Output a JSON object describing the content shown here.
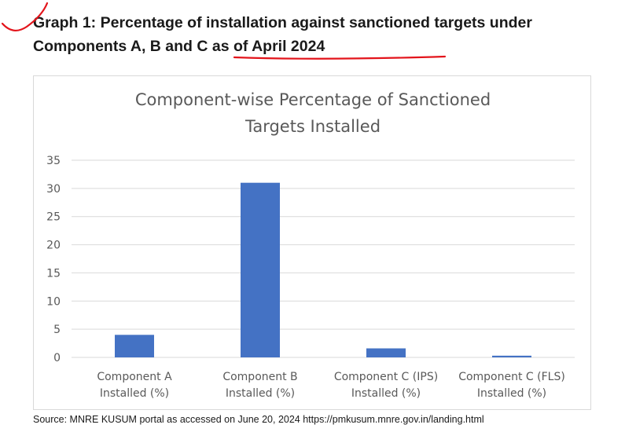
{
  "heading": {
    "line1": "Graph 1: Percentage of installation against sanctioned targets under",
    "line2_prefix": "Components A, B and C as of ",
    "line2_highlight": "April 2024"
  },
  "chart_data": {
    "type": "bar",
    "title_line1": "Component-wise  Percentage of Sanctioned",
    "title_line2": "Targets Installed",
    "categories": [
      [
        "Component A",
        "Installed (%)"
      ],
      [
        "Component B",
        "Installed (%)"
      ],
      [
        "Component C (IPS)",
        "Installed (%)"
      ],
      [
        "Component C (FLS)",
        "Installed (%)"
      ]
    ],
    "values": [
      4.0,
      31.0,
      1.6,
      0.3
    ],
    "ylim": [
      0,
      35
    ],
    "yticks": [
      0,
      5,
      10,
      15,
      20,
      25,
      30,
      35
    ],
    "grid": true,
    "bar_color": "#4472c4",
    "grid_color": "#d9d9d9"
  },
  "source": "Source: MNRE KUSUM portal as accessed on June 20, 2024 https://pmkusum.mnre.gov.in/landing.html",
  "annotation_color": "#e3141b"
}
